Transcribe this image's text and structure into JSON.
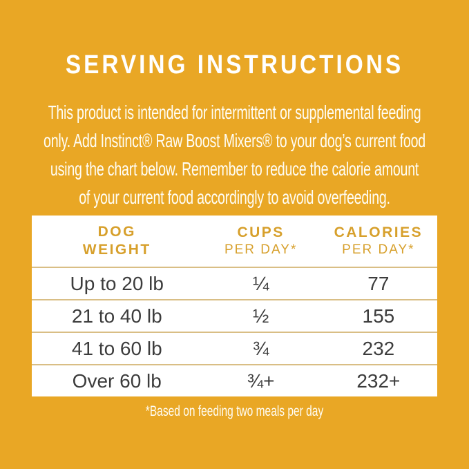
{
  "title": "SERVING INSTRUCTIONS",
  "intro": {
    "line1": "This product is intended for intermittent or supplemental feeding",
    "line2": "only. Add Instinct® Raw Boost Mixers® to your dog’s current food",
    "line3": "using the chart below. Remember to reduce the calorie amount",
    "line4": "of your current food accordingly to avoid overfeeding."
  },
  "table": {
    "headers": {
      "weight": {
        "line1": "DOG",
        "line2": "WEIGHT"
      },
      "cups": {
        "line1": "CUPS",
        "line2": "PER DAY*"
      },
      "calories": {
        "line1": "CALORIES",
        "line2": "PER DAY*"
      }
    },
    "rows": [
      {
        "weight": "Up to 20 lb",
        "cups": "¼",
        "calories": "77"
      },
      {
        "weight": "21 to 40 lb",
        "cups": "½",
        "calories": "155"
      },
      {
        "weight": "41 to 60 lb",
        "cups": "¾",
        "calories": "232"
      },
      {
        "weight": "Over 60 lb",
        "cups": "¾+",
        "calories": "232+"
      }
    ]
  },
  "footnote": "*Based on feeding two meals per day",
  "colors": {
    "background": "#E9A725",
    "table_background": "#FFFFFF",
    "header_text": "#D7A02C",
    "row_text": "#3C3C3C",
    "row_separator": "#D9BE85",
    "light_text": "#FFFFFF"
  },
  "chart_data": {
    "type": "table",
    "title": "SERVING INSTRUCTIONS",
    "columns": [
      "DOG WEIGHT",
      "CUPS PER DAY*",
      "CALORIES PER DAY*"
    ],
    "rows": [
      [
        "Up to 20 lb",
        "¼",
        "77"
      ],
      [
        "21 to 40 lb",
        "½",
        "155"
      ],
      [
        "41 to 60 lb",
        "¾",
        "232"
      ],
      [
        "Over 60 lb",
        "¾+",
        "232+"
      ]
    ],
    "footnote": "*Based on feeding two meals per day"
  }
}
